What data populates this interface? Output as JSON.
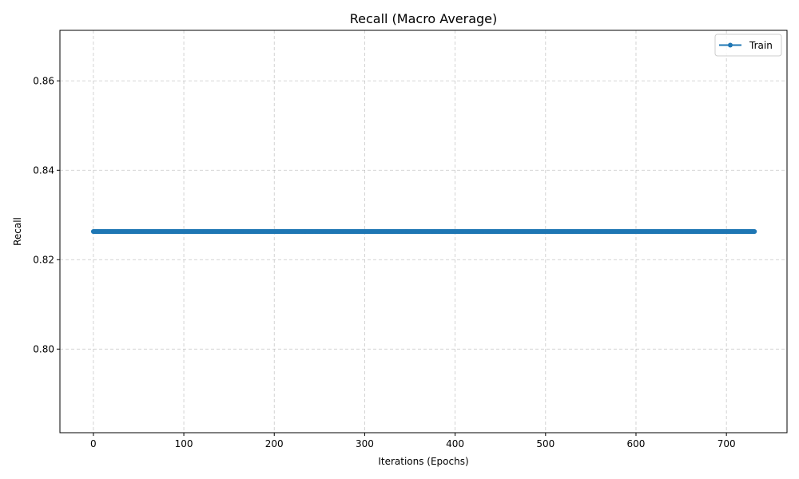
{
  "chart_data": {
    "type": "line",
    "title": "Recall (Macro Average)",
    "xlabel": "Iterations (Epochs)",
    "ylabel": "Recall",
    "xlim": [
      -37,
      767
    ],
    "ylim": [
      0.7813,
      0.8713
    ],
    "xticks": [
      0,
      100,
      200,
      300,
      400,
      500,
      600,
      700
    ],
    "yticks": [
      0.8,
      0.82,
      0.84,
      0.86
    ],
    "ytick_labels": [
      "0.80",
      "0.82",
      "0.84",
      "0.86"
    ],
    "grid": true,
    "legend_position": "top-right",
    "series": [
      {
        "name": "Train",
        "color": "#1f77b4",
        "marker": "circle",
        "x_start": 0,
        "x_end": 731,
        "x_step": 1,
        "value": 0.8263
      }
    ]
  }
}
